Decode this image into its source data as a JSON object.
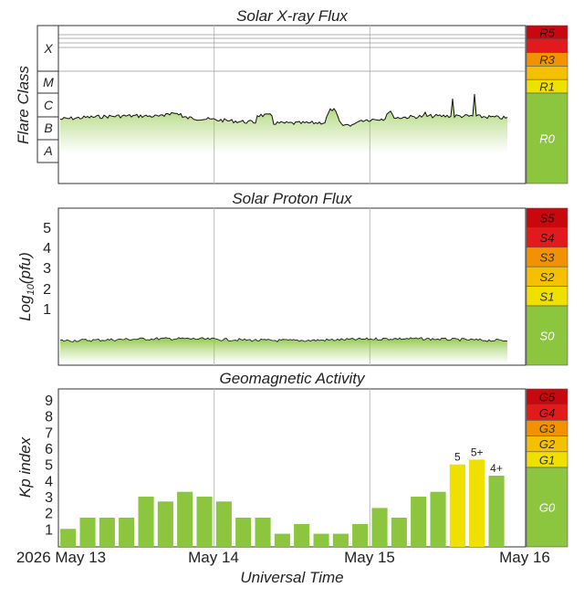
{
  "colors": {
    "green": "#8cc63f",
    "yellow": "#f0e000",
    "gold": "#f5c000",
    "orange": "#f39200",
    "red_orange": "#e8400a",
    "red": "#e31a1c",
    "dark_red": "#c8070e",
    "grid": "#bdbdbd"
  },
  "xray": {
    "title": "Solar X-ray Flux",
    "ylabel": "Flare Class",
    "classes": [
      "X",
      "M",
      "C",
      "B",
      "A"
    ],
    "scale": [
      {
        "label": "R5",
        "color": "#c8070e"
      },
      {
        "label": "",
        "color": "#e31a1c"
      },
      {
        "label": "R3",
        "color": "#f39200"
      },
      {
        "label": "",
        "color": "#f5c000"
      },
      {
        "label": "R1",
        "color": "#f0e000"
      },
      {
        "label": "R0",
        "color": "#8cc63f"
      }
    ]
  },
  "proton": {
    "title": "Solar Proton Flux",
    "ylabel": "Log10(pfu)",
    "ylabel_main": "Log",
    "ylabel_sub": "10",
    "ylabel_tail": "(pfu)",
    "yticks": [
      "1",
      "2",
      "3",
      "4",
      "5"
    ],
    "scale": [
      {
        "label": "S5",
        "color": "#c8070e"
      },
      {
        "label": "S4",
        "color": "#e31a1c"
      },
      {
        "label": "S3",
        "color": "#f39200"
      },
      {
        "label": "S2",
        "color": "#f5c000"
      },
      {
        "label": "S1",
        "color": "#f0e000"
      },
      {
        "label": "S0",
        "color": "#8cc63f"
      }
    ]
  },
  "geomag": {
    "title": "Geomagnetic Activity",
    "ylabel": "Kp index",
    "yticks": [
      "1",
      "2",
      "3",
      "4",
      "5",
      "6",
      "7",
      "8",
      "9"
    ],
    "scale": [
      {
        "label": "G5",
        "color": "#c8070e"
      },
      {
        "label": "G4",
        "color": "#e31a1c"
      },
      {
        "label": "G3",
        "color": "#f39200"
      },
      {
        "label": "G2",
        "color": "#f5c000"
      },
      {
        "label": "G1",
        "color": "#f0e000"
      },
      {
        "label": "G0",
        "color": "#8cc63f"
      }
    ]
  },
  "xaxis": {
    "label": "Universal Time",
    "ticks": [
      "2026 May 13",
      "May 14",
      "May 15",
      "May 16"
    ]
  },
  "chart_data": [
    {
      "type": "area",
      "title": "Solar X-ray Flux",
      "ylabel": "Flare Class",
      "ylim": [
        "A",
        "X"
      ],
      "series_level": "B to C (background near B8-C1), brief peaks near C5-M1"
    },
    {
      "type": "area",
      "title": "Solar Proton Flux",
      "ylabel": "Log10(pfu)",
      "yticks": [
        1,
        2,
        3,
        4,
        5
      ],
      "series_level": "below 1 (background)"
    },
    {
      "type": "bar",
      "title": "Geomagnetic Activity",
      "ylabel": "Kp index",
      "xlabel": "Universal Time",
      "ylim": [
        0,
        9
      ],
      "values": [
        1.0,
        1.7,
        1.7,
        1.7,
        3.0,
        2.7,
        3.3,
        3.0,
        2.7,
        1.7,
        1.7,
        0.7,
        1.3,
        0.7,
        0.7,
        1.3,
        2.3,
        1.7,
        3.0,
        3.3,
        5.0,
        5.3,
        4.3
      ],
      "labels": [
        "",
        "",
        "",
        "",
        "",
        "",
        "",
        "",
        "",
        "",
        "",
        "",
        "",
        "",
        "",
        "",
        "",
        "",
        "",
        "",
        "5",
        "5+",
        "4+"
      ],
      "colors": [
        "#8cc63f",
        "#8cc63f",
        "#8cc63f",
        "#8cc63f",
        "#8cc63f",
        "#8cc63f",
        "#8cc63f",
        "#8cc63f",
        "#8cc63f",
        "#8cc63f",
        "#8cc63f",
        "#8cc63f",
        "#8cc63f",
        "#8cc63f",
        "#8cc63f",
        "#8cc63f",
        "#8cc63f",
        "#8cc63f",
        "#8cc63f",
        "#8cc63f",
        "#f0e000",
        "#f0e000",
        "#8cc63f"
      ]
    }
  ]
}
